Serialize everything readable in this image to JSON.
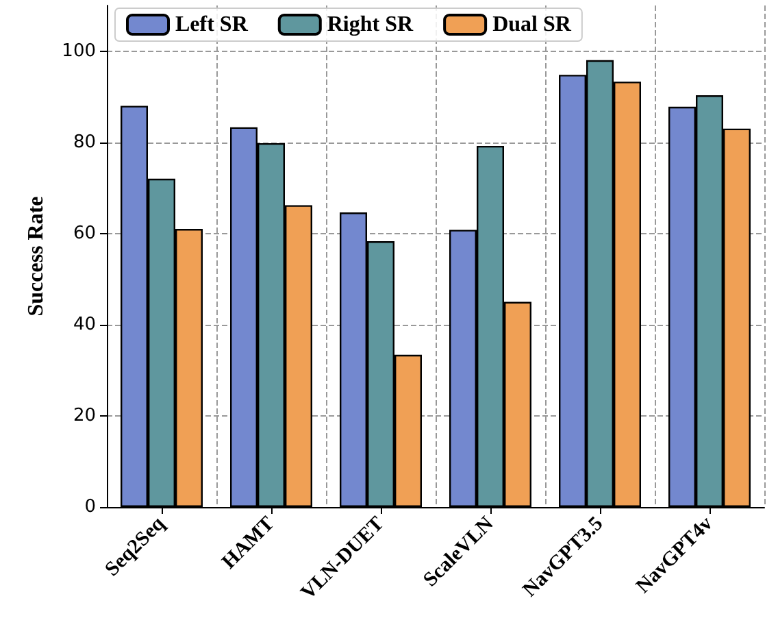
{
  "chart_data": {
    "type": "bar",
    "ylabel": "Success Rate",
    "categories": [
      "Seq2Seq",
      "HAMT",
      "VLN-DUET",
      "ScaleVLN",
      "NavGPT3.5",
      "NavGPT4v"
    ],
    "series": [
      {
        "name": "Left SR",
        "color": "#7388cf",
        "values": [
          88,
          83.3,
          64.6,
          60.8,
          94.8,
          87.8
        ]
      },
      {
        "name": "Right SR",
        "color": "#5f979e",
        "values": [
          72,
          79.8,
          58.3,
          79.2,
          98,
          90.3
        ]
      },
      {
        "name": "Dual SR",
        "color": "#f0a055",
        "values": [
          61,
          66.2,
          33.4,
          45,
          93.3,
          83
        ]
      }
    ],
    "ylim": [
      0,
      110
    ],
    "yticks": [
      0,
      20,
      40,
      60,
      80,
      100
    ],
    "grid": true,
    "legend": "top left"
  }
}
